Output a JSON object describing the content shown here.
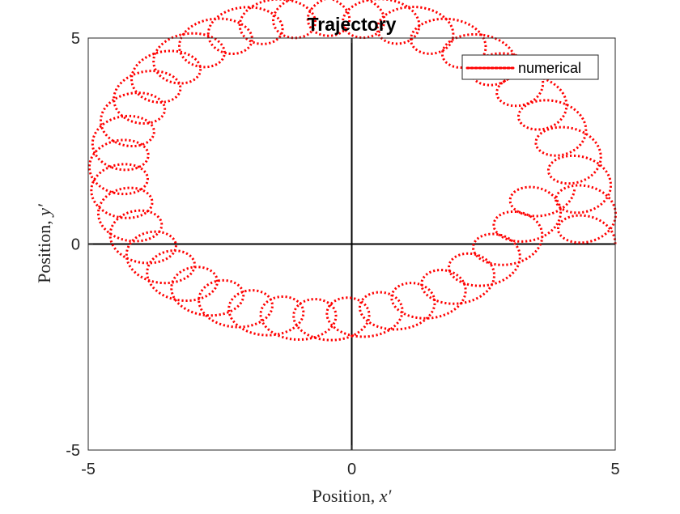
{
  "chart_data": {
    "type": "line",
    "title": "Trajectory",
    "xlabel": {
      "text": "Position, ",
      "symbol": "x′"
    },
    "ylabel": {
      "text": "Position, ",
      "symbol": "y′"
    },
    "xlim": [
      -5,
      5
    ],
    "ylim": [
      -5,
      5
    ],
    "xticks": [
      -5,
      0,
      5
    ],
    "yticks": [
      -5,
      0,
      5
    ],
    "xtick_labels": [
      "-5",
      "0",
      "5"
    ],
    "ytick_labels": [
      "-5",
      "0",
      "5"
    ],
    "grid": false,
    "zero_lines": true,
    "legend_position": "top-right",
    "series": [
      {
        "name": "numerical",
        "color": "#ff0000",
        "line_style": "dotted",
        "model": "epicycloid-like loops",
        "center_radius_start": 4.46,
        "center_radius_end": 4.2,
        "angle_start_deg": -6,
        "angle_end_deg": 338,
        "loop_radius_x": 0.55,
        "loop_radius_y": 0.5,
        "loops": 40,
        "start_point": [
          5.0,
          0.0
        ],
        "end_point": [
          4.23,
          1.35
        ]
      }
    ]
  }
}
